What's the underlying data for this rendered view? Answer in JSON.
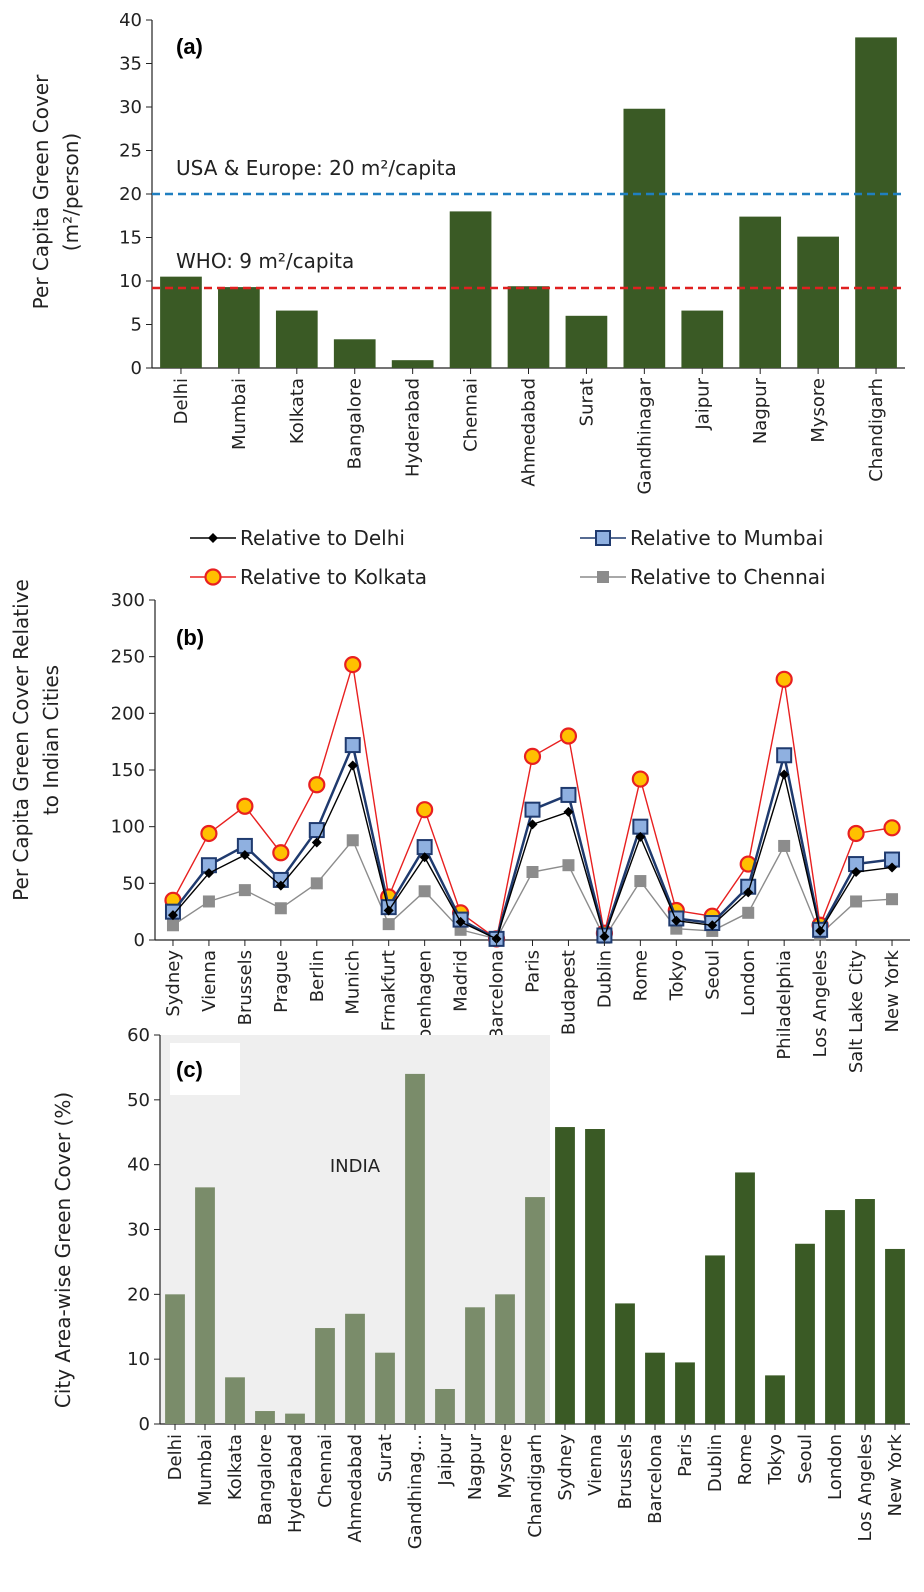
{
  "chart_data": [
    {
      "panel": "(a)",
      "type": "bar",
      "ylabel_line1": "Per Capita Green Cover",
      "ylabel_line2": "(m²/person)",
      "ylim": [
        0,
        40
      ],
      "yticks": [
        0,
        5,
        10,
        15,
        20,
        25,
        30,
        35,
        40
      ],
      "categories": [
        "Delhi",
        "Mumbai",
        "Kolkata",
        "Bangalore",
        "Hyderabad",
        "Chennai",
        "Ahmedabad",
        "Surat",
        "Gandhinagar",
        "Jaipur",
        "Nagpur",
        "Mysore",
        "Chandigarh"
      ],
      "values": [
        10.5,
        9.3,
        6.6,
        3.3,
        0.9,
        18.0,
        9.4,
        6.0,
        29.8,
        6.6,
        17.4,
        15.1,
        38.0
      ],
      "bar_color": "#3a5a25",
      "reference_lines": [
        {
          "label": "USA & Europe: 20 m²/capita",
          "value": 20,
          "color": "#1f7fc0"
        },
        {
          "label": "WHO: 9 m²/capita",
          "value": 9.2,
          "color": "#e02020"
        }
      ]
    },
    {
      "panel": "(b)",
      "type": "line",
      "ylabel_line1": "Per Capita Green Cover Relative",
      "ylabel_line2": "to Indian Cities",
      "ylim": [
        0,
        300
      ],
      "yticks": [
        0,
        50,
        100,
        150,
        200,
        250,
        300
      ],
      "categories": [
        "Sydney",
        "Vienna",
        "Brussels",
        "Prague",
        "Berlin",
        "Munich",
        "Frnakfurt",
        "Copenhagen",
        "Madrid",
        "Barcelona",
        "Paris",
        "Budapest",
        "Dublin",
        "Rome",
        "Tokyo",
        "Seoul",
        "London",
        "Philadelphia",
        "Los Angeles",
        "Salt Lake City",
        "New York"
      ],
      "series": [
        {
          "name": "Relative to Delhi",
          "color": "#000000",
          "marker": "diamond",
          "values": [
            22,
            59,
            75,
            48,
            86,
            154,
            26,
            73,
            16,
            1,
            102,
            113,
            3,
            91,
            17,
            13,
            42,
            146,
            8,
            60,
            64
          ]
        },
        {
          "name": "Relative to Mumbai",
          "color": "#1f3a6e",
          "marker": "square-blue",
          "values": [
            25,
            66,
            83,
            53,
            97,
            172,
            29,
            82,
            18,
            1,
            115,
            128,
            4,
            100,
            19,
            15,
            47,
            163,
            9,
            67,
            71
          ]
        },
        {
          "name": "Relative to Kolkata",
          "color": "#e82020",
          "marker": "circle-orange",
          "values": [
            35,
            94,
            118,
            77,
            137,
            243,
            38,
            115,
            24,
            1,
            162,
            180,
            6,
            142,
            26,
            21,
            67,
            230,
            13,
            94,
            99
          ]
        },
        {
          "name": "Relative to Chennai",
          "color": "#8c8c8c",
          "marker": "square-gray",
          "values": [
            13,
            34,
            44,
            28,
            50,
            88,
            14,
            43,
            9,
            1,
            60,
            66,
            2,
            52,
            10,
            8,
            24,
            83,
            5,
            34,
            36
          ]
        }
      ]
    },
    {
      "panel": "(c)",
      "type": "bar",
      "ylabel": "City Area-wise Green Cover (%)",
      "ylim": [
        0,
        60
      ],
      "yticks": [
        0,
        10,
        20,
        30,
        40,
        50,
        60
      ],
      "region_label": "INDIA",
      "categories": [
        "Delhi",
        "Mumbai",
        "Kolkata",
        "Bangalore",
        "Hyderabad",
        "Chennai",
        "Ahmedabad",
        "Surat",
        "Gandhinag...",
        "Jaipur",
        "Nagpur",
        "Mysore",
        "Chandigarh",
        "Sydney",
        "Vienna",
        "Brussels",
        "Barcelona",
        "Paris",
        "Dublin",
        "Rome",
        "Tokyo",
        "Seoul",
        "London",
        "Los Angeles",
        "New York"
      ],
      "values": [
        20,
        36.5,
        7.2,
        2,
        1.6,
        14.8,
        17,
        11,
        54,
        5.4,
        18,
        20,
        35,
        45.8,
        45.5,
        18.6,
        11,
        9.5,
        26,
        38.8,
        7.5,
        27.8,
        33,
        34.7,
        27
      ],
      "india_count": 13,
      "india_color": "#7a8c6a",
      "other_color": "#3a5a25"
    }
  ]
}
